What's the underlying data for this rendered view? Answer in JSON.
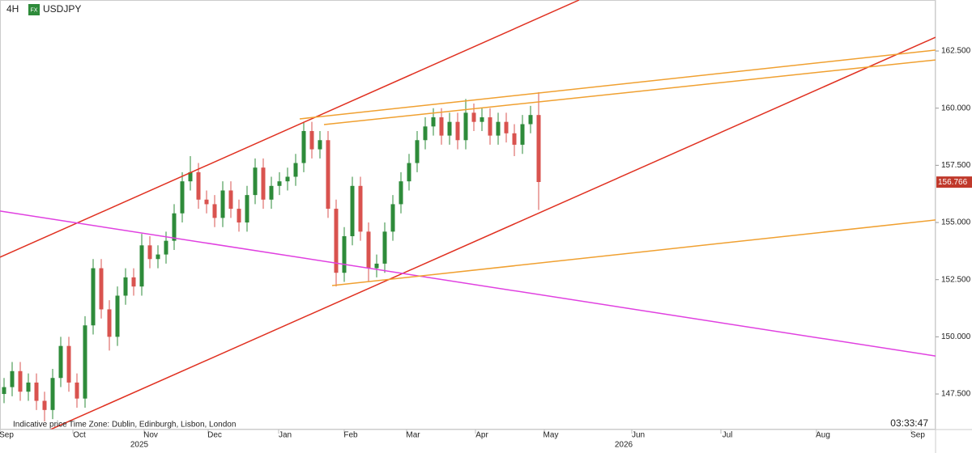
{
  "chart_data": {
    "type": "candlestick",
    "timeframe": "4H",
    "badge": "FX",
    "symbol": "USDJPY",
    "footer_left": "Indicative price",
    "timezone": "Time Zone: Dublin, Edinburgh, Lisbon, London",
    "clock": "03:33:47",
    "x_labels": [
      "Sep",
      "Oct",
      "Nov",
      "Dec",
      "Jan",
      "Feb",
      "Mar",
      "Apr",
      "May",
      "Jun",
      "Jul",
      "Aug",
      "Sep"
    ],
    "years": [
      "2025",
      "2026"
    ],
    "ylim": [
      145.98,
      164.73
    ],
    "yticks": [
      {
        "value": 147.5,
        "label": "147.500"
      },
      {
        "value": 150,
        "label": "150.000"
      },
      {
        "value": 152.5,
        "label": "152.500"
      },
      {
        "value": 155,
        "label": "155.000"
      },
      {
        "value": 157.5,
        "label": "157.500"
      },
      {
        "value": 160,
        "label": "160.000"
      },
      {
        "value": 162.5,
        "label": "162.500"
      }
    ],
    "up_color": "#2e8b3a",
    "down_color": "#d9534f",
    "open": [
      147.5,
      147.8,
      148.5,
      147.6,
      148.0,
      147.2,
      146.8,
      148.2,
      149.6,
      148.0,
      147.3,
      150.5,
      153.0,
      151.2,
      150.0,
      151.8,
      152.6,
      152.2,
      154.0,
      153.4,
      153.6,
      154.2,
      155.4,
      156.8,
      157.2,
      156.0,
      155.8,
      155.2,
      156.4,
      155.6,
      155.0,
      156.2,
      157.4,
      156.0,
      156.6,
      156.8,
      157.0,
      157.6,
      159.0,
      158.2,
      158.6,
      155.6,
      152.8,
      154.4,
      156.6,
      154.6,
      153.0,
      153.2,
      154.6,
      155.8,
      156.8,
      157.6,
      158.6,
      159.2,
      159.6,
      158.8,
      159.4,
      158.6,
      159.8,
      159.4,
      159.6,
      158.8,
      159.4,
      158.9,
      158.4,
      159.3,
      159.7
    ],
    "high": [
      148.2,
      148.9,
      148.9,
      148.4,
      148.4,
      147.6,
      148.6,
      150.0,
      150.0,
      148.4,
      150.9,
      153.4,
      153.4,
      151.6,
      152.2,
      153.0,
      153.0,
      154.5,
      154.4,
      154.0,
      154.6,
      155.8,
      157.2,
      157.9,
      157.6,
      156.4,
      156.2,
      156.8,
      156.8,
      156.0,
      156.6,
      157.8,
      157.8,
      157.0,
      157.2,
      157.4,
      158.0,
      159.4,
      159.4,
      159.0,
      159.0,
      156.0,
      154.8,
      157.0,
      157.0,
      155.0,
      153.6,
      155.0,
      156.2,
      157.2,
      158.0,
      159.0,
      159.6,
      160.0,
      160.0,
      159.8,
      159.8,
      160.4,
      160.2,
      160.0,
      160.0,
      159.8,
      159.8,
      159.3,
      159.7,
      160.1,
      160.7
    ],
    "low": [
      147.1,
      147.4,
      147.2,
      147.2,
      146.8,
      146.3,
      146.4,
      147.8,
      147.6,
      146.9,
      146.9,
      150.1,
      150.8,
      149.4,
      149.6,
      151.4,
      151.8,
      151.8,
      153.0,
      153.0,
      153.2,
      153.8,
      155.0,
      156.4,
      155.6,
      155.4,
      154.8,
      154.8,
      155.2,
      154.6,
      154.6,
      155.8,
      155.6,
      155.6,
      156.2,
      156.4,
      156.6,
      157.2,
      157.8,
      157.8,
      155.2,
      152.2,
      152.4,
      154.0,
      154.2,
      152.4,
      152.6,
      152.8,
      154.2,
      155.4,
      156.4,
      157.2,
      158.2,
      158.8,
      158.4,
      158.4,
      158.2,
      158.2,
      159.0,
      159.0,
      158.4,
      158.4,
      158.5,
      157.9,
      158.0,
      158.9,
      155.55
    ],
    "close": [
      147.8,
      148.5,
      147.6,
      148.0,
      147.2,
      146.8,
      148.2,
      149.6,
      148.0,
      147.3,
      150.5,
      153.0,
      151.2,
      150.0,
      151.8,
      152.6,
      152.2,
      154.0,
      153.4,
      153.6,
      154.2,
      155.4,
      156.8,
      157.2,
      156.0,
      155.8,
      155.2,
      156.4,
      155.6,
      155.0,
      156.2,
      157.4,
      156.0,
      156.6,
      156.8,
      157.0,
      157.6,
      159.0,
      158.2,
      158.6,
      155.6,
      152.8,
      154.4,
      156.6,
      154.6,
      153.0,
      153.2,
      154.6,
      155.8,
      156.8,
      157.6,
      158.6,
      159.2,
      159.6,
      158.8,
      159.4,
      158.6,
      159.8,
      159.4,
      159.6,
      158.8,
      159.4,
      158.9,
      158.4,
      159.3,
      159.7,
      156.77
    ],
    "last_price": {
      "value": 156.766,
      "label": "156.766"
    },
    "last_price_color": "#c0392b",
    "trendlines": [
      {
        "color": "#e03020",
        "values": [
          153.48,
          164.73
        ]
      },
      {
        "color": "#e03020",
        "values": [
          145.91,
          163.1
        ]
      },
      {
        "color": "#e040e0",
        "values": [
          155.5,
          149.16
        ]
      },
      {
        "color": "#f0a030",
        "values": [
          159.53,
          162.54
        ]
      },
      {
        "color": "#f0a030",
        "values": [
          159.28,
          162.11
        ]
      },
      {
        "color": "#f0a030",
        "values": [
          152.24,
          155.11
        ]
      }
    ]
  }
}
